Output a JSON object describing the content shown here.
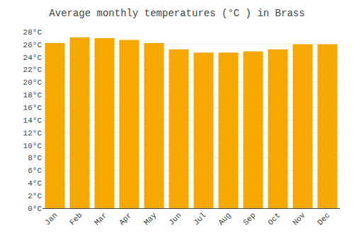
{
  "chart_data": {
    "type": "bar",
    "title": "Average monthly temperatures (°C ) in Brass",
    "categories": [
      "Jan",
      "Feb",
      "Mar",
      "Apr",
      "May",
      "Jun",
      "Jul",
      "Aug",
      "Sep",
      "Oct",
      "Nov",
      "Dec"
    ],
    "values": [
      26.2,
      27.1,
      27.0,
      26.7,
      26.2,
      25.2,
      24.7,
      24.7,
      24.9,
      25.2,
      26.0,
      26.0
    ],
    "color": "#F5A800",
    "ylim": [
      0,
      28
    ],
    "yticks": [
      {
        "value": 0,
        "label": "0°C"
      },
      {
        "value": 2,
        "label": "2°C"
      },
      {
        "value": 4,
        "label": "4°C"
      },
      {
        "value": 6,
        "label": "6°C"
      },
      {
        "value": 8,
        "label": "8°C"
      },
      {
        "value": 10,
        "label": "10°C"
      },
      {
        "value": 12,
        "label": "12°C"
      },
      {
        "value": 14,
        "label": "14°C"
      },
      {
        "value": 16,
        "label": "16°C"
      },
      {
        "value": 18,
        "label": "18°C"
      },
      {
        "value": 20,
        "label": "20°C"
      },
      {
        "value": 22,
        "label": "22°C"
      },
      {
        "value": 24,
        "label": "24°C"
      },
      {
        "value": 26,
        "label": "26°C"
      },
      {
        "value": 28,
        "label": "28°C"
      }
    ],
    "grid": true
  }
}
